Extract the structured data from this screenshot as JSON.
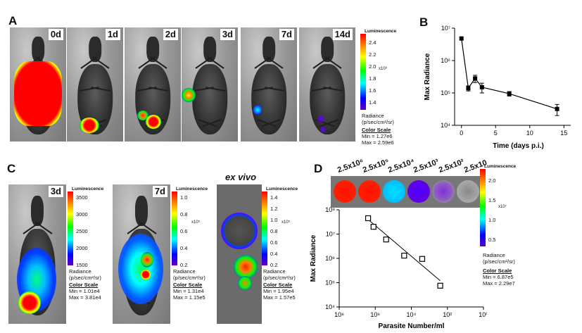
{
  "panels": {
    "a": {
      "letter": "A",
      "days": [
        "0d",
        "1d",
        "2d",
        "3d",
        "7d",
        "14d"
      ],
      "colorbar": {
        "title": "Luminescence",
        "ticks": [
          "2.4",
          "2.2",
          "2.0",
          "1.8",
          "1.6",
          "1.4"
        ],
        "exponent": "x10⁶",
        "radiance": "Radiance",
        "units": "(p/sec/cm²/sr)",
        "scale_label": "Color Scale",
        "min": "Min = 1.27e6",
        "max": "Max = 2.59e6"
      }
    },
    "b": {
      "letter": "B"
    },
    "c": {
      "letter": "C",
      "images": [
        {
          "label": "3d",
          "colorbar": {
            "title": "Luminescence",
            "ticks": [
              "3500",
              "3000",
              "2500",
              "2000",
              "1500"
            ],
            "exponent": "",
            "radiance": "Radiance",
            "units": "(p/sec/cm²/sr)",
            "scale_label": "Color Scale",
            "min": "Min = 1.01e4",
            "max": "Max = 3.81e4"
          }
        },
        {
          "label": "7d",
          "colorbar": {
            "title": "Luminescence",
            "ticks": [
              "1.0",
              "0.8",
              "0.6",
              "0.4",
              "0.2"
            ],
            "exponent": "x10⁵",
            "radiance": "Radiance",
            "units": "(p/sec/cm²/sr)",
            "scale_label": "Color Scale",
            "min": "Min = 1.31e4",
            "max": "Max = 1.15e5"
          }
        },
        {
          "label": "ex vivo",
          "colorbar": {
            "title": "Luminescence",
            "ticks": [
              "1.4",
              "1.2",
              "1.0",
              "0.8",
              "0.6",
              "0.4",
              "0.2"
            ],
            "exponent": "x10⁵",
            "radiance": "Radiance",
            "units": "(p/sec/cm²/sr)",
            "scale_label": "Color Scale",
            "min": "Min = 1.95e4",
            "max": "Max = 1.57e5"
          }
        }
      ]
    },
    "d": {
      "letter": "D",
      "well_labels": [
        "2.5x10⁶",
        "2.5x10⁵",
        "2.5x10⁴",
        "2.5x10³",
        "2.5x10²",
        "2.5x10"
      ],
      "colorbar": {
        "title": "Luminescence",
        "ticks": [
          "2.0",
          "1.5",
          "1.0",
          "0.5"
        ],
        "exponent": "x10⁷",
        "radiance": "Radiance",
        "units": "(p/sec/cm²/sr)",
        "scale_label": "Color Scale",
        "min": "Min = 6.87e5",
        "max": "Max = 2.29e7"
      }
    }
  },
  "chart_data": [
    {
      "type": "line",
      "panel": "B",
      "title": "",
      "xlabel": "Time (days p.i.)",
      "ylabel": "Max Radiance",
      "yscale": "log",
      "ylim": [
        10000,
        10000000
      ],
      "xlim": [
        -1,
        16
      ],
      "xticks": [
        "0",
        "5",
        "10",
        "15"
      ],
      "xtick_values": [
        0,
        5,
        10,
        15
      ],
      "yticks": [
        "10⁴",
        "10⁵",
        "10⁶",
        "10⁷"
      ],
      "ytick_values": [
        10000,
        100000,
        1000000,
        10000000
      ],
      "x": [
        0,
        1,
        2,
        3,
        7,
        14
      ],
      "y": [
        4800000,
        140000,
        280000,
        150000,
        95000,
        32000
      ],
      "err": [
        0,
        25000,
        70000,
        50000,
        15000,
        12000
      ]
    },
    {
      "type": "scatter",
      "panel": "D",
      "title": "",
      "xlabel": "Parasite Number/ml",
      "ylabel": "Max Radiance",
      "xscale": "log",
      "yscale": "log",
      "xlim": [
        100000000,
        1
      ],
      "ylim": [
        10000,
        100000000
      ],
      "xticks": [
        "10⁸",
        "10⁶",
        "10⁴",
        "10²",
        "10⁰"
      ],
      "xtick_values": [
        100000000,
        1000000,
        10000,
        100,
        1
      ],
      "yticks": [
        "10⁴",
        "10⁵",
        "10⁶",
        "10⁷",
        "10⁸"
      ],
      "ytick_values": [
        10000,
        100000,
        1000000,
        10000000,
        100000000
      ],
      "x": [
        2500000,
        1250000,
        250000,
        25000,
        2500,
        250
      ],
      "y": [
        45000000,
        20000000,
        6000000,
        1300000,
        950000,
        75000
      ],
      "fit": {
        "x": [
          2500000,
          250
        ],
        "y": [
          40000000,
          120000
        ]
      }
    }
  ]
}
